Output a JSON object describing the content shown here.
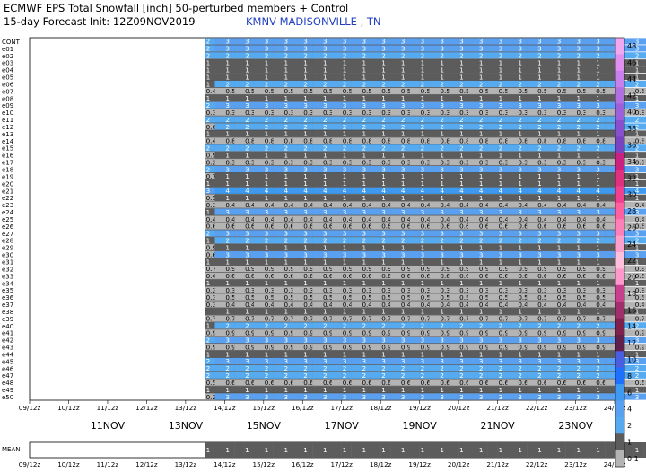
{
  "header": {
    "title": "ECMWF EPS Total Snowfall [inch]  50-perturbed members + Control",
    "subtitle": "15-day Forecast Init: 12Z09NOV2019",
    "station": "KMNV MADISONVILLE    , TN"
  },
  "chart_data": {
    "type": "heatmap",
    "members": [
      "CONT",
      "e01",
      "e02",
      "e03",
      "e04",
      "e05",
      "e06",
      "e07",
      "e08",
      "e09",
      "e10",
      "e11",
      "e12",
      "e13",
      "e14",
      "e15",
      "e16",
      "e17",
      "e18",
      "e19",
      "e20",
      "e21",
      "e22",
      "e23",
      "e24",
      "e25",
      "e26",
      "e27",
      "e28",
      "e29",
      "e30",
      "e31",
      "e32",
      "e33",
      "e34",
      "e35",
      "e36",
      "e37",
      "e38",
      "e39",
      "e40",
      "e41",
      "e42",
      "e43",
      "e44",
      "e45",
      "e46",
      "e47",
      "e48",
      "e49",
      "e50"
    ],
    "time_labels": [
      "09/12z",
      "10/12z",
      "11/12z",
      "12/12z",
      "13/12z",
      "14/12z",
      "15/12z",
      "16/12z",
      "17/12z",
      "18/12z",
      "19/12z",
      "20/12z",
      "21/12z",
      "22/12z",
      "23/12z",
      "24/12z"
    ],
    "day_labels": [
      "11NOV",
      "13NOV",
      "15NOV",
      "17NOV",
      "19NOV",
      "21NOV",
      "23NOV"
    ],
    "start_step": 18,
    "num_steps": 60,
    "member_rows": [
      {
        "first": 2,
        "v": 3
      },
      {
        "first": 2,
        "v": 3
      },
      {
        "first": 2,
        "v": 2
      },
      {
        "first": 1,
        "v": 1
      },
      {
        "first": 1,
        "v": 1
      },
      {
        "first": 1,
        "v": 1
      },
      {
        "first": 1,
        "v": 2,
        "tail": [
          [
            55,
            2
          ]
        ]
      },
      {
        "first": 0.4,
        "v": 0.5
      },
      {
        "first": 1,
        "v": 1
      },
      {
        "first": 2,
        "v": 3
      },
      {
        "first": 0.3,
        "v": 0.3
      },
      {
        "first": 2,
        "v": 2
      },
      {
        "first": 0.6,
        "v": 2
      },
      {
        "first": 1,
        "v": 1
      },
      {
        "first": 0.4,
        "v": 0.8
      },
      {
        "first": 2,
        "v": 2
      },
      {
        "first": 0.9,
        "v": 1
      },
      {
        "first": 0.2,
        "v": 0.3
      },
      {
        "first": 2,
        "v": 3
      },
      {
        "first": 0.7,
        "v": 1
      },
      {
        "first": 1,
        "v": 1
      },
      {
        "first": 3,
        "v": 4
      },
      {
        "first": 0.5,
        "v": 1
      },
      {
        "first": 0.3,
        "v": 0.4
      },
      {
        "first": 1,
        "v": 3
      },
      {
        "first": 0.4,
        "v": 0.4
      },
      {
        "first": 0.6,
        "v": 0.6
      },
      {
        "first": 2,
        "v": 3
      },
      {
        "first": 1,
        "v": 2
      },
      {
        "first": 0.9,
        "v": 1
      },
      {
        "first": 0.6,
        "v": 3
      },
      {
        "first": 1,
        "v": 1
      },
      {
        "first": 0.7,
        "v": 0.9
      },
      {
        "first": 0.4,
        "v": 0.6
      },
      {
        "first": 1,
        "v": 1
      },
      {
        "first": 0.2,
        "v": 0.3
      },
      {
        "first": 0.3,
        "v": 0.5
      },
      {
        "first": 0.3,
        "v": 0.4
      },
      {
        "first": null,
        "v": 1
      },
      {
        "first": 0.7,
        "v": 0.7
      },
      {
        "first": 1,
        "v": 2
      },
      {
        "first": 0.9,
        "v": 0.9
      },
      {
        "first": 2,
        "v": 3
      },
      {
        "first": 0.9,
        "v": 0.9
      },
      {
        "first": 1,
        "v": 1
      },
      {
        "first": 2,
        "v": 3
      },
      {
        "first": 2,
        "v": 2
      },
      {
        "first": 2,
        "v": 2
      },
      {
        "first": 0.5,
        "v": 0.6
      },
      {
        "first": 1,
        "v": 1
      },
      {
        "first": 0.2,
        "v": 3
      }
    ],
    "mean": {
      "label": "MEAN",
      "first": 1,
      "v": 1
    },
    "colorbar": {
      "labels": [
        "48",
        "46",
        "44",
        "42",
        "40",
        "38",
        "36",
        "34",
        "32",
        "30",
        "28",
        "26",
        "24",
        "22",
        "20",
        "18",
        "16",
        "14",
        "12",
        "10",
        "8",
        "6",
        "4",
        "2",
        "1",
        "0.1"
      ],
      "colors": [
        "#f0a8f0",
        "#e090ee",
        "#c880ec",
        "#b070e0",
        "#9c60d8",
        "#8850cc",
        "#7844c0",
        "#cc2080",
        "#e03080",
        "#f04090",
        "#ff60a0",
        "#ff80b8",
        "#ffa0cc",
        "#ffc0dc",
        "#ff99cc",
        "#c8408c",
        "#a0306c",
        "#80204c",
        "#60204c",
        "#4a5ee0",
        "#2070ff",
        "#3d9af0",
        "#5aa0f0",
        "#55aaf0",
        "#5c5c5c",
        "#b4b4b4"
      ]
    },
    "color_scale": {
      "0.1": "#b4b4b4",
      "1": "#5c5c5c",
      "2": "#55aaf0",
      "3": "#5aa0f0",
      "4": "#3d9af0"
    }
  }
}
